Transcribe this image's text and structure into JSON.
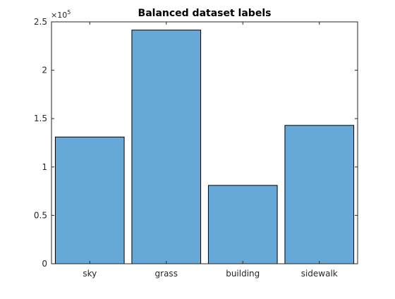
{
  "chart_data": {
    "type": "bar",
    "title": "Balanced dataset labels",
    "categories": [
      "sky",
      "grass",
      "building",
      "sidewalk"
    ],
    "values": [
      131000,
      241500,
      81000,
      143000
    ],
    "xlabel": "",
    "ylabel": "",
    "ylim": [
      0,
      250000
    ],
    "yticks": [
      0,
      50000,
      100000,
      150000,
      200000,
      250000
    ],
    "ytick_labels": [
      "0",
      "0.5",
      "1",
      "1.5",
      "2",
      "2.5"
    ],
    "y_exponent_base": "×10",
    "y_exponent_power": "5",
    "bar_color": "#66a9d8",
    "bar_edge_color": "#000000",
    "grid": false,
    "legend": "none"
  }
}
